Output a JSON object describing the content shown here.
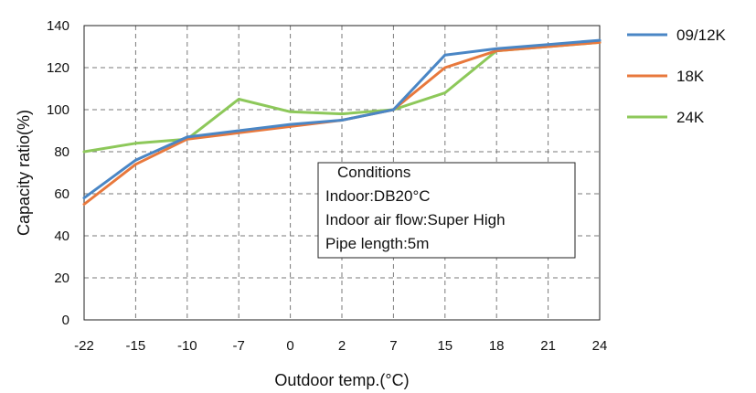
{
  "chart_data": {
    "type": "line",
    "xlabel": "Outdoor temp.(°C)",
    "ylabel": "Capacity ratio(%)",
    "categories": [
      "-22",
      "-15",
      "-10",
      "-7",
      "0",
      "2",
      "7",
      "15",
      "18",
      "21",
      "24"
    ],
    "ylim": [
      0,
      140
    ],
    "yticks": [
      "0",
      "20",
      "40",
      "60",
      "80",
      "100",
      "120",
      "140"
    ],
    "grid": true,
    "legend_position": "right",
    "series": [
      {
        "name": "09/12K",
        "color": "#4a86c5",
        "values": [
          58,
          76,
          87,
          90,
          93,
          95,
          100,
          126,
          129,
          131,
          133
        ]
      },
      {
        "name": "18K",
        "color": "#e8783c",
        "values": [
          55,
          74,
          86,
          89,
          92,
          95,
          100,
          120,
          128,
          130,
          132
        ]
      },
      {
        "name": "24K",
        "color": "#8dc85a",
        "values": [
          80,
          84,
          86,
          105,
          99,
          98,
          100,
          108,
          128,
          130,
          132
        ]
      }
    ],
    "annotation": {
      "lines": [
        "Conditions",
        "Indoor:DB20°C",
        "Indoor air flow:Super High",
        "Pipe length:5m"
      ]
    }
  }
}
